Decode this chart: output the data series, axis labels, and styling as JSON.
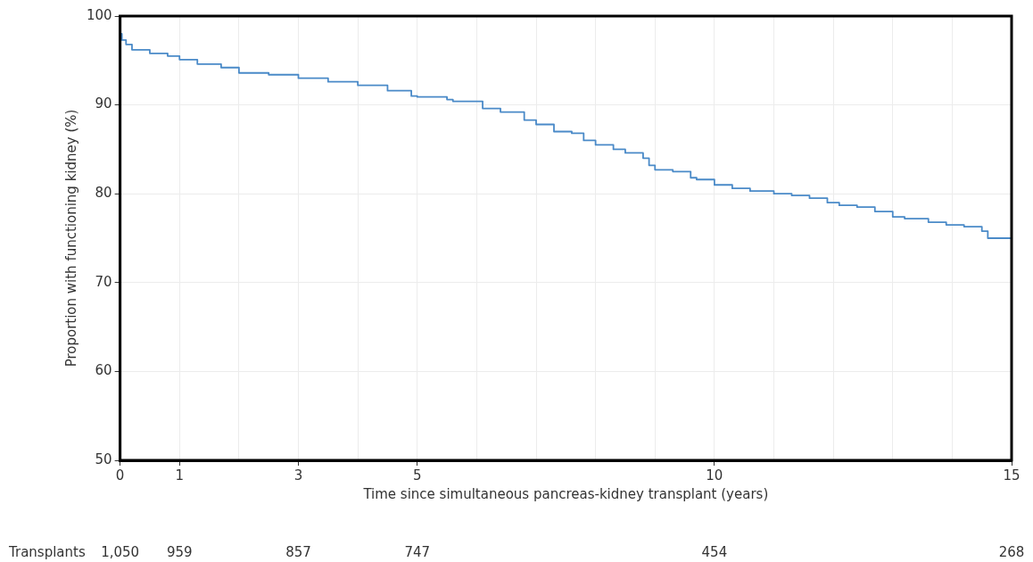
{
  "chart_data": {
    "type": "step",
    "xlabel": "Time since simultaneous pancreas-kidney transplant (years)",
    "ylabel": "Proportion with functioning kidney (%)",
    "x": [
      0,
      0.03,
      0.1,
      0.2,
      0.5,
      0.8,
      1.0,
      1.3,
      1.7,
      2.0,
      2.5,
      3.0,
      3.5,
      4.0,
      4.5,
      4.9,
      5.0,
      5.5,
      5.6,
      6.1,
      6.4,
      6.8,
      7.0,
      7.3,
      7.6,
      7.8,
      8.0,
      8.3,
      8.5,
      8.8,
      8.9,
      9.0,
      9.3,
      9.6,
      9.7,
      10.0,
      10.3,
      10.6,
      11.0,
      11.3,
      11.6,
      11.9,
      12.1,
      12.4,
      12.7,
      13.0,
      13.2,
      13.6,
      13.9,
      14.2,
      14.5,
      14.6,
      14.7,
      15
    ],
    "series": [
      {
        "color": "#4a8ac8",
        "values": [
          100,
          98,
          97.3,
          96.8,
          96.2,
          95.8,
          95.5,
          95.1,
          94.6,
          94.2,
          93.6,
          93.4,
          93.0,
          92.6,
          92.2,
          91.6,
          91.0,
          90.9,
          90.6,
          90.4,
          89.6,
          89.2,
          88.3,
          87.8,
          87.0,
          86.8,
          86.0,
          85.5,
          85.0,
          84.6,
          84.0,
          83.2,
          82.7,
          82.5,
          81.8,
          81.6,
          81.0,
          80.6,
          80.3,
          80.0,
          79.8,
          79.5,
          79.0,
          78.7,
          78.5,
          78.0,
          77.4,
          77.2,
          76.8,
          76.5,
          76.3,
          75.8,
          75.0,
          75.0
        ]
      }
    ],
    "xlim": [
      0,
      15
    ],
    "xticks": [
      0,
      1,
      {
        "value": 2,
        "label": null
      },
      3,
      {
        "value": 4,
        "label": null
      },
      5,
      {
        "value": 6,
        "label": null
      },
      {
        "value": 7,
        "label": null
      },
      {
        "value": 8,
        "label": null
      },
      {
        "value": 9,
        "label": null
      },
      10,
      {
        "value": 11,
        "label": null
      },
      {
        "value": 12,
        "label": null
      },
      {
        "value": 13,
        "label": null
      },
      {
        "value": 14,
        "label": null
      },
      15
    ],
    "ylim": [
      50,
      100
    ],
    "yticks": [
      50,
      60,
      70,
      80,
      90,
      100
    ],
    "grid": true,
    "legend": false,
    "marker": "none",
    "line_style": "solid",
    "annotations": [
      "Transplants",
      "1,050",
      "959",
      "857",
      "747",
      "454",
      "268"
    ]
  }
}
